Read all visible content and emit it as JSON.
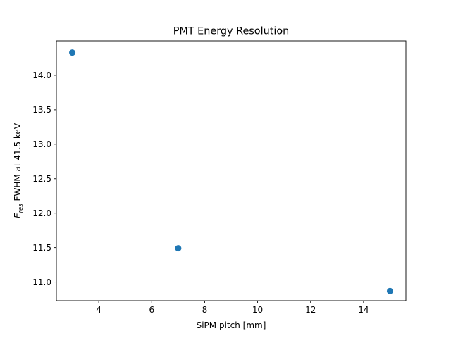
{
  "chart_data": {
    "type": "scatter",
    "title": "PMT Energy Resolution",
    "xlabel": "SiPM pitch [mm]",
    "ylabel": {
      "prefix": "E",
      "subscript": "res",
      "suffix": " FWHM at 41.5 keV"
    },
    "xlim": [
      2.4,
      15.6
    ],
    "ylim": [
      10.73,
      14.5
    ],
    "xticks": [
      4,
      6,
      8,
      10,
      12,
      14
    ],
    "yticks": [
      11.0,
      11.5,
      12.0,
      12.5,
      13.0,
      13.5,
      14.0
    ],
    "xtick_labels": [
      "4",
      "6",
      "8",
      "10",
      "12",
      "14"
    ],
    "ytick_labels": [
      "11.0",
      "11.5",
      "12.0",
      "12.5",
      "13.0",
      "13.5",
      "14.0"
    ],
    "grid": false,
    "marker_color": "#1f77b4",
    "points": [
      {
        "x": 3,
        "y": 14.33
      },
      {
        "x": 7,
        "y": 11.49
      },
      {
        "x": 15,
        "y": 10.87
      }
    ]
  }
}
